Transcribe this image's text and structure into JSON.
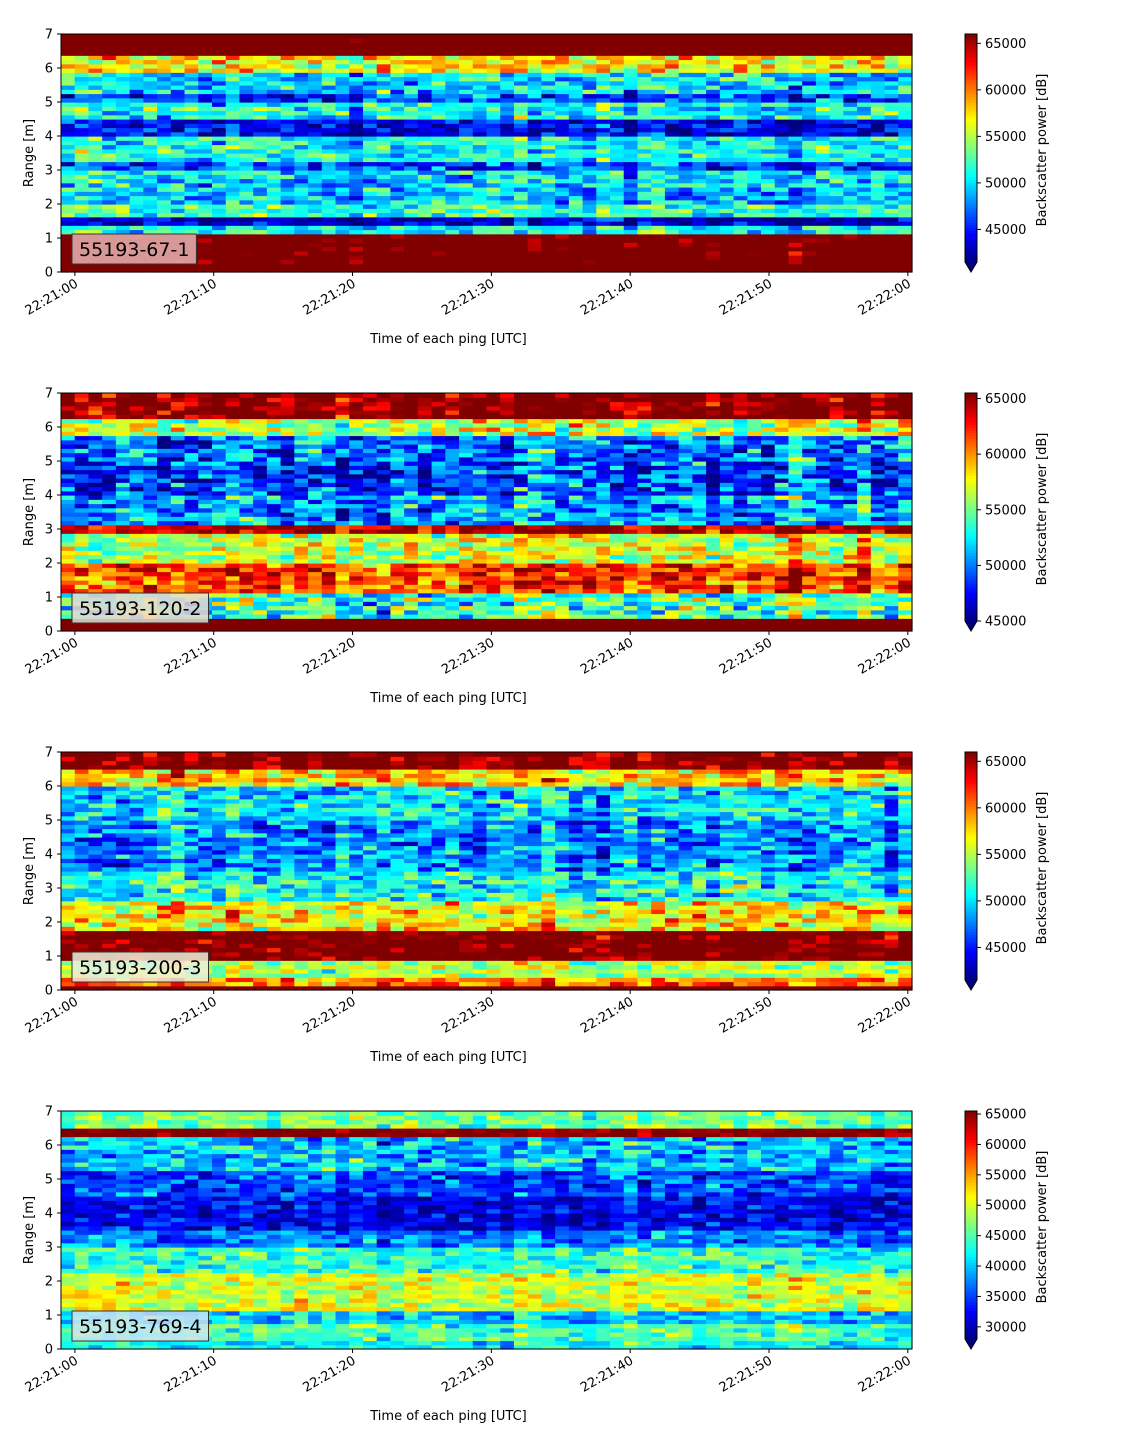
{
  "figure": {
    "background": "#ffffff",
    "colormap": "jet"
  },
  "chart_data": [
    {
      "type": "heatmap",
      "label_box": "55193-67-1",
      "label_box_color": "#e8b3b3",
      "xlabel": "Time of each ping [UTC]",
      "ylabel": "Range [m]",
      "x_ticks": [
        "22:21:00",
        "22:21:10",
        "22:21:20",
        "22:21:30",
        "22:21:40",
        "22:21:50",
        "22:22:00"
      ],
      "x_range_seconds": [
        -1,
        60.3
      ],
      "y_ticks": [
        0,
        1,
        2,
        3,
        4,
        5,
        6,
        7
      ],
      "ylim": [
        0,
        7
      ],
      "colorbar": {
        "label": "Backscatter power [dB]",
        "ticks": [
          45000,
          50000,
          55000,
          60000,
          65000
        ],
        "range": [
          41500,
          66000
        ],
        "extend": "min"
      },
      "profile": [
        [
          0,
          0.3,
          70000,
          0
        ],
        [
          0.3,
          1.1,
          68000,
          2500
        ],
        [
          1.1,
          1.35,
          51000,
          3000
        ],
        [
          1.35,
          1.6,
          43000,
          2500
        ],
        [
          1.6,
          2.0,
          52000,
          3000
        ],
        [
          2.0,
          2.4,
          49000,
          3000
        ],
        [
          2.4,
          3.0,
          50000,
          3500
        ],
        [
          3.0,
          3.3,
          46000,
          3000
        ],
        [
          3.3,
          4.0,
          51000,
          3000
        ],
        [
          4.0,
          4.5,
          44000,
          3000
        ],
        [
          4.5,
          5.0,
          51000,
          3500
        ],
        [
          5.0,
          5.3,
          46000,
          3500
        ],
        [
          5.3,
          5.9,
          50000,
          3500
        ],
        [
          5.9,
          6.4,
          57000,
          3500
        ],
        [
          6.4,
          7.0,
          70000,
          2000
        ]
      ]
    },
    {
      "type": "heatmap",
      "label_box": "55193-120-2",
      "label_box_color": "#ead9d0",
      "xlabel": "Time of each ping [UTC]",
      "ylabel": "Range [m]",
      "x_ticks": [
        "22:21:00",
        "22:21:10",
        "22:21:20",
        "22:21:30",
        "22:21:40",
        "22:21:50",
        "22:22:00"
      ],
      "x_range_seconds": [
        -1,
        60.3
      ],
      "y_ticks": [
        0,
        1,
        2,
        3,
        4,
        5,
        6,
        7
      ],
      "ylim": [
        0,
        7
      ],
      "colorbar": {
        "label": "Backscatter power [dB]",
        "ticks": [
          45000,
          50000,
          55000,
          60000,
          65000
        ],
        "range": [
          45000,
          65500
        ],
        "extend": "min"
      },
      "profile": [
        [
          0,
          0.4,
          70000,
          0
        ],
        [
          0.4,
          1.1,
          54000,
          3500
        ],
        [
          1.1,
          2.0,
          62000,
          3000
        ],
        [
          2.0,
          2.9,
          57000,
          3000
        ],
        [
          2.9,
          3.15,
          65000,
          2000
        ],
        [
          3.15,
          4.0,
          51000,
          3500
        ],
        [
          4.0,
          5.0,
          49000,
          3500
        ],
        [
          5.0,
          5.8,
          50000,
          3500
        ],
        [
          5.8,
          6.3,
          57000,
          3500
        ],
        [
          6.3,
          7.0,
          66000,
          2500
        ]
      ]
    },
    {
      "type": "heatmap",
      "label_box": "55193-200-3",
      "label_box_color": "#eef0dc",
      "xlabel": "Time of each ping [UTC]",
      "ylabel": "Range [m]",
      "x_ticks": [
        "22:21:00",
        "22:21:10",
        "22:21:20",
        "22:21:30",
        "22:21:40",
        "22:21:50",
        "22:22:00"
      ],
      "x_range_seconds": [
        -1,
        60.3
      ],
      "y_ticks": [
        0,
        1,
        2,
        3,
        4,
        5,
        6,
        7
      ],
      "ylim": [
        0,
        7
      ],
      "colorbar": {
        "label": "Backscatter power [dB]",
        "ticks": [
          45000,
          50000,
          55000,
          60000,
          65000
        ],
        "range": [
          41500,
          66000
        ],
        "extend": "min"
      },
      "profile": [
        [
          0,
          0.15,
          70000,
          0
        ],
        [
          0.15,
          0.4,
          60000,
          3000
        ],
        [
          0.4,
          0.9,
          55000,
          3000
        ],
        [
          0.9,
          1.8,
          67000,
          2500
        ],
        [
          1.8,
          2.6,
          57000,
          3500
        ],
        [
          2.6,
          3.5,
          51000,
          3500
        ],
        [
          3.5,
          5.0,
          48000,
          3500
        ],
        [
          5.0,
          6.0,
          50000,
          3500
        ],
        [
          6.0,
          6.5,
          58000,
          3500
        ],
        [
          6.5,
          7.0,
          66000,
          2500
        ]
      ]
    },
    {
      "type": "heatmap",
      "label_box": "55193-769-4",
      "label_box_color": "#c9e4f5",
      "xlabel": "Time of each ping [UTC]",
      "ylabel": "Range [m]",
      "x_ticks": [
        "22:21:00",
        "22:21:10",
        "22:21:20",
        "22:21:30",
        "22:21:40",
        "22:21:50",
        "22:22:00"
      ],
      "x_range_seconds": [
        -1,
        60.3
      ],
      "y_ticks": [
        0,
        1,
        2,
        3,
        4,
        5,
        6,
        7
      ],
      "ylim": [
        0,
        7
      ],
      "colorbar": {
        "label": "Backscatter power [dB]",
        "ticks": [
          30000,
          35000,
          40000,
          45000,
          50000,
          55000,
          60000,
          65000
        ],
        "range": [
          28000,
          65500
        ],
        "extend": "min"
      },
      "profile": [
        [
          0,
          0.2,
          42000,
          3000
        ],
        [
          0.2,
          0.3,
          70000,
          0
        ],
        [
          0.3,
          0.7,
          45000,
          4000
        ],
        [
          0.7,
          1.1,
          40000,
          4000
        ],
        [
          1.1,
          2.2,
          50000,
          4000
        ],
        [
          2.2,
          3.0,
          44000,
          4000
        ],
        [
          3.0,
          3.5,
          37000,
          4000
        ],
        [
          3.5,
          4.5,
          32000,
          3500
        ],
        [
          4.5,
          5.3,
          35000,
          4500
        ],
        [
          5.3,
          6.3,
          40000,
          5000
        ],
        [
          6.3,
          6.55,
          66000,
          2500
        ],
        [
          6.55,
          7.0,
          46000,
          4000
        ]
      ]
    }
  ]
}
